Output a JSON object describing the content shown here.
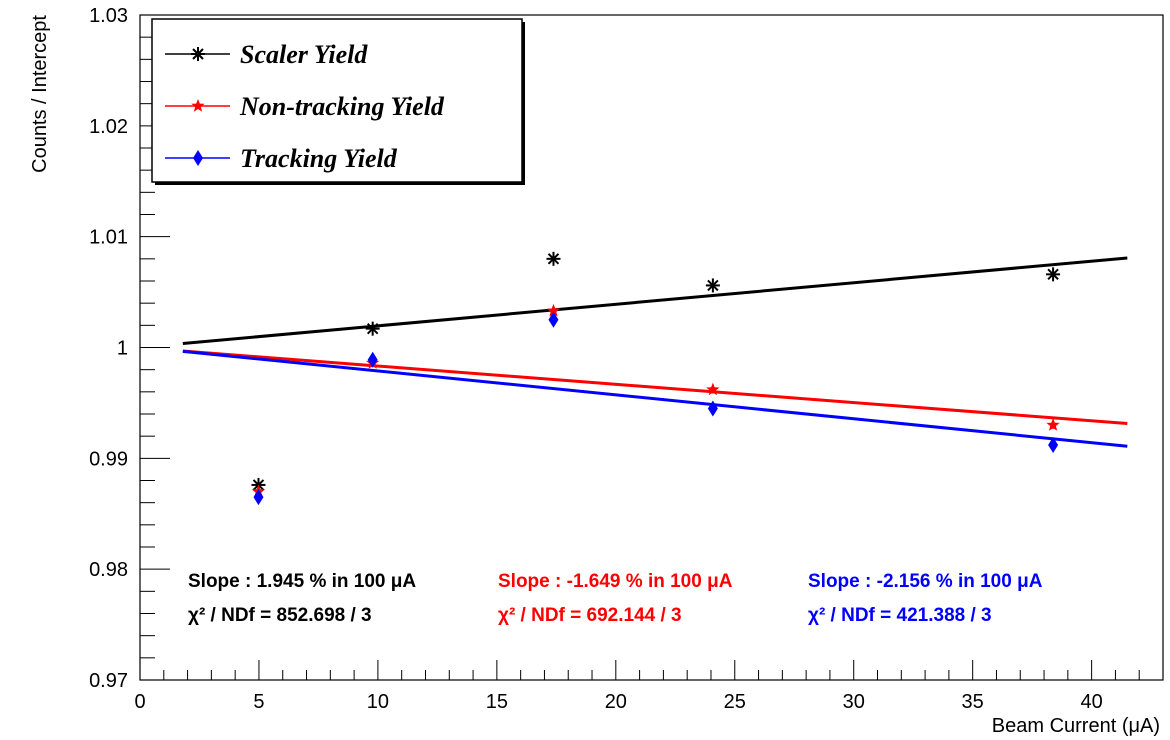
{
  "chart_data": {
    "type": "scatter",
    "xlabel": "Beam Current (μA)",
    "ylabel": "Counts / Intercept",
    "xlim": [
      0,
      43
    ],
    "ylim": [
      0.97,
      1.03
    ],
    "x_ticks": [
      0,
      5,
      10,
      15,
      20,
      25,
      30,
      35,
      40
    ],
    "x_tick_labels": [
      "0",
      "5",
      "10",
      "15",
      "20",
      "25",
      "30",
      "35",
      "40"
    ],
    "y_ticks": [
      0.97,
      0.98,
      0.99,
      1.0,
      1.01,
      1.02,
      1.03
    ],
    "y_tick_labels": [
      "0.97",
      "0.98",
      "0.99",
      "1",
      "1.01",
      "1.02",
      "1.03"
    ],
    "grid": false,
    "legend_position": "top-left",
    "series": [
      {
        "name": "Scaler Yield",
        "color": "#000000",
        "marker": "asterisk",
        "x": [
          4.98,
          9.78,
          17.38,
          24.08,
          38.38
        ],
        "y": [
          0.9876,
          1.0017,
          1.008,
          1.0056,
          1.0066
        ],
        "fit": {
          "x": [
            1.8,
            41.5
          ],
          "y": [
            1.00036,
            1.00808
          ]
        },
        "slope_text": "Slope : 1.945 % in 100  μA",
        "chi2_text": "χ² / NDf = 852.698 / 3"
      },
      {
        "name": "Non-tracking Yield",
        "color": "#ff0000",
        "marker": "star",
        "x": [
          4.98,
          9.78,
          17.38,
          24.08,
          38.38
        ],
        "y": [
          0.987,
          0.9986,
          1.0033,
          0.9962,
          0.993
        ],
        "fit": {
          "x": [
            1.8,
            41.5
          ],
          "y": [
            0.99968,
            0.99314
          ]
        },
        "slope_text": "Slope : -1.649 % in 100  μA",
        "chi2_text": "χ² / NDf = 692.144 / 3"
      },
      {
        "name": "Tracking Yield",
        "color": "#0000ff",
        "marker": "diamond",
        "x": [
          4.98,
          9.78,
          17.38,
          24.08,
          38.38
        ],
        "y": [
          0.9865,
          0.9989,
          1.0025,
          0.9945,
          0.9912
        ],
        "fit": {
          "x": [
            1.8,
            41.5
          ],
          "y": [
            0.99965,
            0.99109
          ]
        },
        "slope_text": "Slope : -2.156 % in 100  μA",
        "chi2_text": "χ² / NDf = 421.388 / 3"
      }
    ]
  }
}
